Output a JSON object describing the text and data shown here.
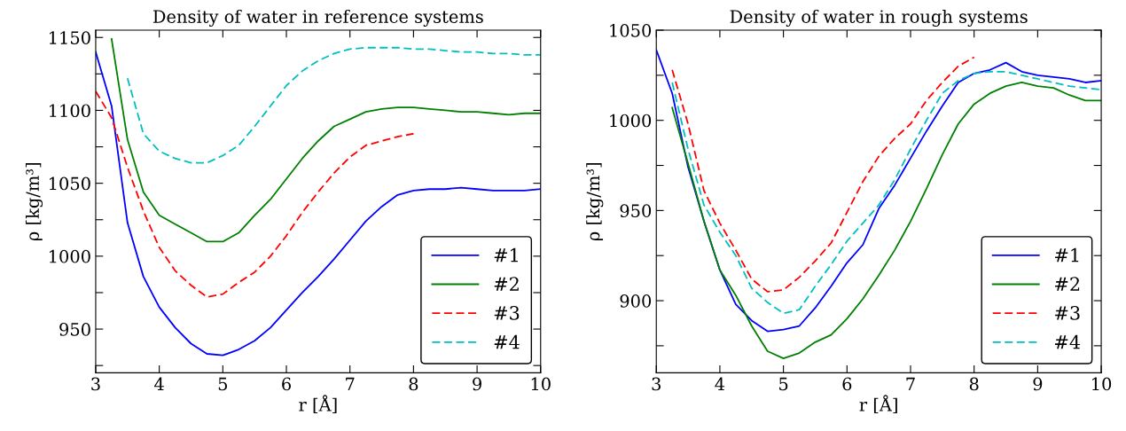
{
  "chart_data": [
    {
      "type": "line",
      "title": "Density of water in reference systems",
      "xlabel": "r [Å]",
      "ylabel": "ρ [kg/m³]",
      "xlim": [
        3,
        10
      ],
      "xticks": [
        3,
        4,
        5,
        6,
        7,
        8,
        9,
        10
      ],
      "ylim": [
        920,
        1155
      ],
      "yticks": [
        {
          "value": 925,
          "label": null
        },
        950,
        {
          "value": 975,
          "label": null
        },
        1000,
        {
          "value": 1025,
          "label": null
        },
        1050,
        {
          "value": 1075,
          "label": null
        },
        1100,
        {
          "value": 1125,
          "label": null
        },
        1150
      ],
      "grid": false,
      "legend": "lower right",
      "series": [
        {
          "name": "#1",
          "color": "#0000ff",
          "line_style": "solid",
          "x": [
            3,
            3.25,
            3.5,
            3.75,
            4,
            4.25,
            4.5,
            4.75,
            5,
            5.25,
            5.5,
            5.75,
            6,
            6.25,
            6.5,
            6.75,
            7,
            7.25,
            7.5,
            7.75,
            8,
            8.25,
            8.5,
            8.75,
            9,
            9.25,
            9.5,
            9.75,
            10
          ],
          "values": [
            1140,
            1103,
            1023,
            986,
            965,
            951,
            940,
            933,
            932,
            936,
            942,
            951,
            963,
            975,
            986,
            998,
            1011,
            1024,
            1034,
            1042,
            1045,
            1046,
            1046,
            1047,
            1046,
            1045,
            1045,
            1045,
            1046
          ]
        },
        {
          "name": "#2",
          "color": "#008000",
          "line_style": "solid",
          "x": [
            3.25,
            3.5,
            3.75,
            4,
            4.25,
            4.5,
            4.75,
            5,
            5.25,
            5.5,
            5.75,
            6,
            6.25,
            6.5,
            6.75,
            7,
            7.25,
            7.5,
            7.75,
            8,
            8.25,
            8.5,
            8.75,
            9,
            9.25,
            9.5,
            9.75,
            10
          ],
          "values": [
            1149,
            1080,
            1044,
            1028,
            1022,
            1016,
            1010,
            1010,
            1016,
            1028,
            1039,
            1053,
            1067,
            1079,
            1089,
            1094,
            1099,
            1101,
            1102,
            1102,
            1101,
            1100,
            1099,
            1099,
            1098,
            1097,
            1098,
            1098
          ]
        },
        {
          "name": "#3",
          "color": "#ff0000",
          "line_style": "dashed",
          "x": [
            3,
            3.25,
            3.5,
            3.75,
            4,
            4.25,
            4.5,
            4.75,
            5,
            5.25,
            5.5,
            5.75,
            6,
            6.25,
            6.5,
            6.75,
            7,
            7.25,
            7.5,
            7.75,
            8
          ],
          "values": [
            1113,
            1095,
            1061,
            1031,
            1006,
            990,
            980,
            972,
            974,
            982,
            989,
            1000,
            1014,
            1030,
            1044,
            1057,
            1068,
            1076,
            1079,
            1082,
            1084
          ]
        },
        {
          "name": "#4",
          "color": "#00bfbf",
          "line_style": "dashed",
          "x": [
            3.5,
            3.75,
            4,
            4.25,
            4.5,
            4.75,
            5,
            5.25,
            5.5,
            5.75,
            6,
            6.25,
            6.5,
            6.75,
            7,
            7.25,
            7.5,
            7.75,
            8,
            8.25,
            8.5,
            8.75,
            9,
            9.25,
            9.5,
            9.75,
            10
          ],
          "values": [
            1122,
            1084,
            1072,
            1067,
            1064,
            1064,
            1069,
            1076,
            1089,
            1103,
            1117,
            1127,
            1134,
            1139,
            1142,
            1143,
            1143,
            1143,
            1142,
            1142,
            1141,
            1140,
            1140,
            1139,
            1139,
            1138,
            1138
          ]
        }
      ]
    },
    {
      "type": "line",
      "title": "Density of water in rough systems",
      "xlabel": "r [Å]",
      "ylabel": "ρ [kg/m³]",
      "xlim": [
        3,
        10
      ],
      "xticks": [
        3,
        4,
        5,
        6,
        7,
        8,
        9,
        10
      ],
      "ylim": [
        860,
        1050
      ],
      "yticks": [
        {
          "value": 875,
          "label": null
        },
        900,
        {
          "value": 925,
          "label": null
        },
        950,
        {
          "value": 975,
          "label": null
        },
        1000,
        {
          "value": 1025,
          "label": null
        },
        1050
      ],
      "grid": false,
      "legend": "lower right",
      "series": [
        {
          "name": "#1",
          "color": "#0000ff",
          "line_style": "solid",
          "x": [
            3,
            3.25,
            3.5,
            3.75,
            4,
            4.25,
            4.5,
            4.75,
            5,
            5.25,
            5.5,
            5.75,
            6,
            6.25,
            6.5,
            6.75,
            7,
            7.25,
            7.5,
            7.75,
            8,
            8.25,
            8.5,
            8.75,
            9,
            9.25,
            9.5,
            9.75,
            10
          ],
          "values": [
            1039,
            1015,
            974,
            944,
            917,
            898,
            889,
            883,
            884,
            886,
            896,
            908,
            921,
            931,
            951,
            964,
            979,
            994,
            1008,
            1021,
            1026,
            1028,
            1032,
            1027,
            1025,
            1024,
            1023,
            1021,
            1022
          ]
        },
        {
          "name": "#2",
          "color": "#008000",
          "line_style": "solid",
          "x": [
            3.25,
            3.5,
            3.75,
            4,
            4.25,
            4.5,
            4.75,
            5,
            5.25,
            5.5,
            5.75,
            6,
            6.25,
            6.5,
            6.75,
            7,
            7.25,
            7.5,
            7.75,
            8,
            8.25,
            8.5,
            8.75,
            9,
            9.25,
            9.5,
            9.75,
            10
          ],
          "values": [
            1007,
            976,
            944,
            917,
            903,
            886,
            872,
            868,
            871,
            877,
            881,
            890,
            901,
            914,
            928,
            944,
            962,
            981,
            998,
            1009,
            1015,
            1019,
            1021,
            1019,
            1018,
            1014,
            1011,
            1011
          ]
        },
        {
          "name": "#3",
          "color": "#ff0000",
          "line_style": "dashed",
          "x": [
            3.25,
            3.5,
            3.75,
            4,
            4.25,
            4.5,
            4.75,
            5,
            5.25,
            5.5,
            5.75,
            6,
            6.25,
            6.5,
            6.75,
            7,
            7.25,
            7.5,
            7.75,
            8
          ],
          "values": [
            1028,
            998,
            961,
            943,
            928,
            912,
            905,
            906,
            913,
            922,
            932,
            949,
            966,
            980,
            990,
            998,
            1011,
            1021,
            1030,
            1035
          ]
        },
        {
          "name": "#4",
          "color": "#00bfbf",
          "line_style": "dashed",
          "x": [
            3.25,
            3.5,
            3.75,
            4,
            4.25,
            4.5,
            4.75,
            5,
            5.25,
            5.5,
            5.75,
            6,
            6.25,
            6.5,
            6.75,
            7,
            7.25,
            7.5,
            7.75,
            8,
            8.25,
            8.5,
            8.75,
            9,
            9.25,
            9.5,
            9.75,
            10
          ],
          "values": [
            1021,
            984,
            953,
            938,
            925,
            907,
            899,
            893,
            895,
            908,
            920,
            933,
            943,
            953,
            967,
            984,
            1000,
            1015,
            1022,
            1026,
            1027,
            1027,
            1025,
            1023,
            1021,
            1019,
            1018,
            1017
          ]
        }
      ]
    }
  ]
}
